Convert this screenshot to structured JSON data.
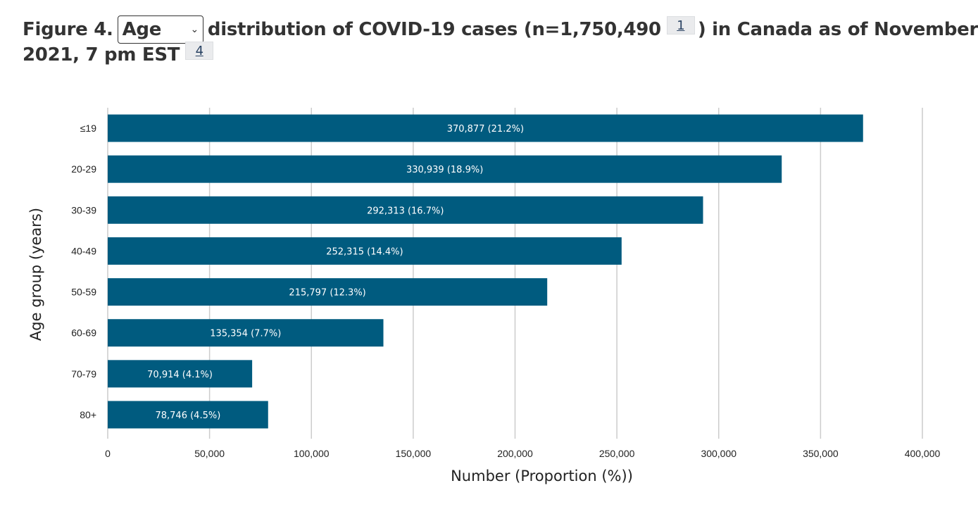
{
  "heading": {
    "prefix": "Figure 4.",
    "select_value": "Age",
    "middle": "distribution of COVID-19 cases (n=1,750,490",
    "footnote1": "1",
    "suffix": ") in Canada as of November",
    "line2": "2021, 7 pm EST",
    "footnote2": "4"
  },
  "colors": {
    "bar": "#005b7f",
    "grid": "#cccccc",
    "text": "#333333"
  },
  "chart_data": {
    "type": "bar",
    "orientation": "horizontal",
    "categories": [
      "≤19",
      "20-29",
      "30-39",
      "40-49",
      "50-59",
      "60-69",
      "70-79",
      "80+"
    ],
    "values": [
      370877,
      330939,
      292313,
      252315,
      215797,
      135354,
      70914,
      78746
    ],
    "data_labels": [
      "370,877 (21.2%)",
      "330,939 (18.9%)",
      "292,313 (16.7%)",
      "252,315 (14.4%)",
      "215,797 (12.3%)",
      "135,354 (7.7%)",
      "70,914 (4.1%)",
      "78,746 (4.5%)"
    ],
    "xlabel": "Number (Proportion (%))",
    "ylabel": "Age group (years)",
    "xlim": [
      0,
      400000
    ],
    "xticks": [
      0,
      50000,
      100000,
      150000,
      200000,
      250000,
      300000,
      350000,
      400000
    ],
    "xtick_labels": [
      "0",
      "50,000",
      "100,000",
      "150,000",
      "200,000",
      "250,000",
      "300,000",
      "350,000",
      "400,000"
    ],
    "grid": true
  }
}
